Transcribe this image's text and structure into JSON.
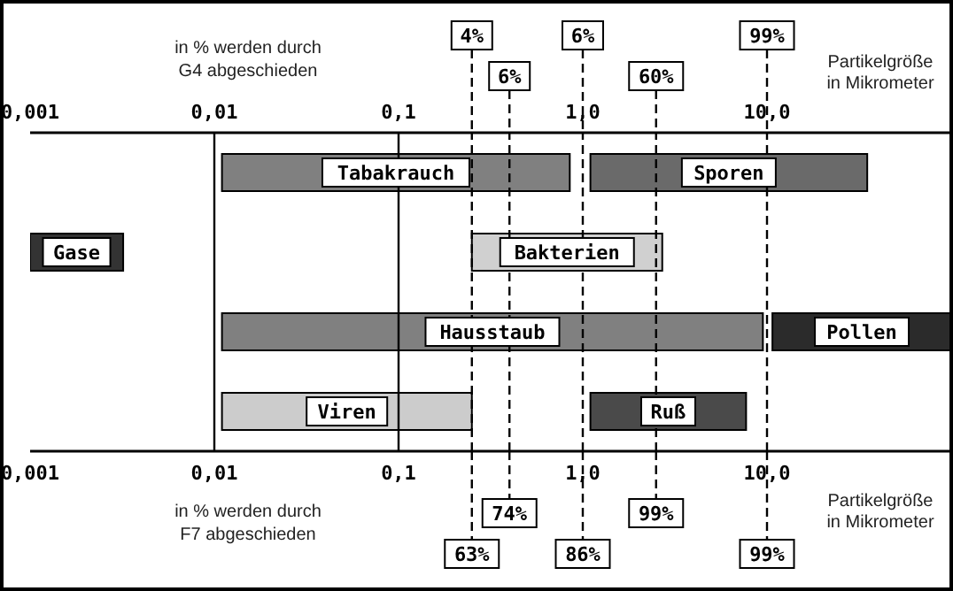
{
  "chart_data": {
    "type": "bar",
    "orientation": "horizontal",
    "log": "x",
    "categories": [
      null,
      null,
      null,
      null
    ],
    "series": [
      {
        "name": "Tabakrauch",
        "color": "#808080",
        "base": [
          0.011,
          null,
          null,
          null
        ],
        "values": [
          0.839,
          null,
          null,
          null
        ]
      },
      {
        "name": "Sporen",
        "color": "#6a6a6a",
        "base": [
          1.1,
          null,
          null,
          null
        ],
        "values": [
          33.9,
          null,
          null,
          null
        ]
      },
      {
        "name": "Gase",
        "color": "#333333",
        "base": [
          null,
          0.001,
          null,
          null
        ],
        "values": [
          null,
          0.0022,
          null,
          null
        ]
      },
      {
        "name": "Bakterien",
        "color": "#d0d0d0",
        "base": [
          null,
          0.25,
          null,
          null
        ],
        "values": [
          null,
          2.45,
          null,
          null
        ]
      },
      {
        "name": "Hausstaub",
        "color": "#808080",
        "base": [
          null,
          null,
          0.011,
          null
        ],
        "values": [
          null,
          null,
          9.489,
          null
        ]
      },
      {
        "name": "Pollen",
        "color": "#2b2b2b",
        "base": [
          null,
          null,
          10.7,
          null
        ],
        "values": [
          null,
          null,
          89.3,
          null
        ]
      },
      {
        "name": "Viren",
        "color": "#cccccc",
        "base": [
          null,
          null,
          null,
          0.011
        ],
        "values": [
          null,
          null,
          null,
          0.239
        ]
      },
      {
        "name": "Ruß",
        "color": "#4a4a4a",
        "base": [
          null,
          null,
          null,
          1.1
        ],
        "values": [
          null,
          null,
          null,
          6.6
        ]
      }
    ],
    "xlim": [
      0.001,
      100
    ],
    "xticks": [
      {
        "value": 0.001,
        "label": "0,001"
      },
      {
        "value": 0.01,
        "label": "0,01"
      },
      {
        "value": 0.1,
        "label": "0,1"
      },
      {
        "value": 1,
        "label": "1,0"
      },
      {
        "value": 10,
        "label": "10,0"
      }
    ],
    "xlabel": "Partikelgröße in Mikrometer",
    "x2label": "Partikelgröße in Mikrometer",
    "ref_lines": [
      {
        "axis": "x",
        "value": 0.01,
        "color": "#000000",
        "line_style": "solid"
      },
      {
        "axis": "x",
        "value": 0.1,
        "color": "#000000",
        "line_style": "solid"
      },
      {
        "axis": "x",
        "value": 0.25,
        "color": "#000000",
        "line_style": "dashed"
      },
      {
        "axis": "x",
        "value": 0.4,
        "color": "#000000",
        "line_style": "dashed"
      },
      {
        "axis": "x",
        "value": 1,
        "color": "#000000",
        "line_style": "dashed"
      },
      {
        "axis": "x",
        "value": 2.5,
        "color": "#000000",
        "line_style": "dashed"
      },
      {
        "axis": "x",
        "value": 10,
        "color": "#000000",
        "line_style": "dashed"
      }
    ],
    "annotations": [
      "in % werden durch G4 abgeschieden",
      "in % werden durch F7 abgeschieden",
      "4%",
      "6%",
      "6%",
      "60%",
      "99%",
      "63%",
      "74%",
      "86%",
      "99%",
      "99%"
    ]
  }
}
